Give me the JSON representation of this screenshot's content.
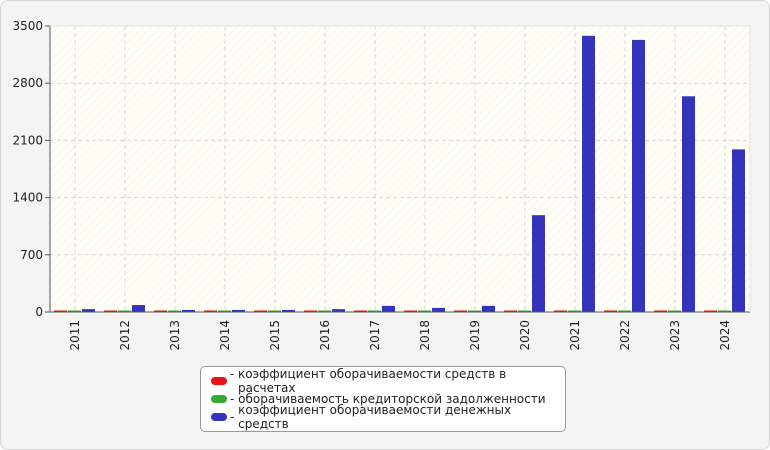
{
  "chart_data": {
    "type": "bar",
    "categories": [
      "2011",
      "2012",
      "2013",
      "2014",
      "2015",
      "2016",
      "2017",
      "2018",
      "2019",
      "2020",
      "2021",
      "2022",
      "2023",
      "2024"
    ],
    "series": [
      {
        "name": "коэффициент оборачиваемости средств в расчетах",
        "color": "#ee1111",
        "values": [
          8,
          8,
          8,
          8,
          8,
          8,
          8,
          8,
          8,
          8,
          8,
          8,
          8,
          8
        ]
      },
      {
        "name": "оборачиваемость кредиторской задолженности",
        "color": "#33aa33",
        "values": [
          6,
          6,
          6,
          6,
          6,
          6,
          6,
          6,
          6,
          6,
          6,
          6,
          6,
          6
        ]
      },
      {
        "name": "коэффициент оборачиваемости денежных средств",
        "color": "#3333bb",
        "values": [
          35,
          85,
          25,
          25,
          25,
          35,
          75,
          50,
          75,
          1185,
          3380,
          3330,
          2640,
          1990
        ]
      }
    ],
    "yticks": [
      0,
      700,
      1400,
      2100,
      2800,
      3500
    ],
    "ylim": [
      0,
      3500
    ],
    "grid": true,
    "legend_position": "bottom",
    "title": "",
    "xlabel": "",
    "ylabel": ""
  }
}
